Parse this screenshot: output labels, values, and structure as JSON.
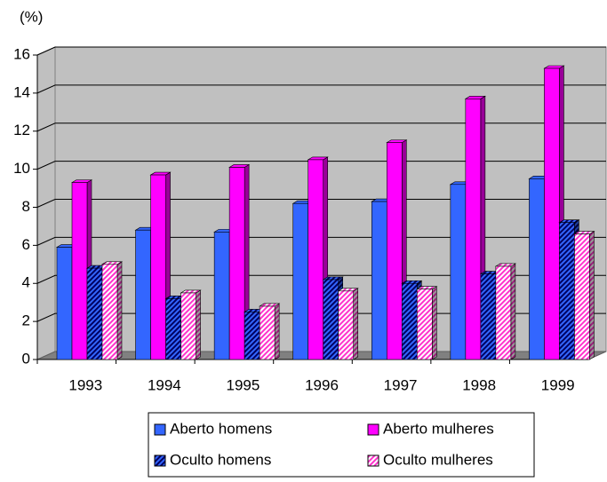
{
  "chart_data": {
    "type": "bar3d",
    "y_label": "(%)",
    "categories": [
      "1993",
      "1994",
      "1995",
      "1996",
      "1997",
      "1998",
      "1999"
    ],
    "series": [
      {
        "name": "Aberto homens",
        "color": "#3366ff",
        "values": [
          5.9,
          6.8,
          6.7,
          8.2,
          8.3,
          9.2,
          9.5
        ]
      },
      {
        "name": "Aberto mulheres",
        "color": "#ff00ff",
        "values": [
          9.3,
          9.7,
          10.1,
          10.5,
          11.4,
          13.7,
          15.3
        ]
      },
      {
        "name": "Oculto homens",
        "color": "#000080",
        "values": [
          4.8,
          3.2,
          2.5,
          4.2,
          4.0,
          4.5,
          7.2
        ]
      },
      {
        "name": "Oculto mulheres",
        "color": "#ff66cc",
        "values": [
          5.0,
          3.5,
          2.8,
          3.6,
          3.7,
          4.9,
          6.6
        ]
      }
    ],
    "ylim": [
      0,
      16
    ],
    "yticks": [
      0,
      2,
      4,
      6,
      8,
      10,
      12,
      14,
      16
    ],
    "grid": true,
    "legend": "bottom"
  }
}
